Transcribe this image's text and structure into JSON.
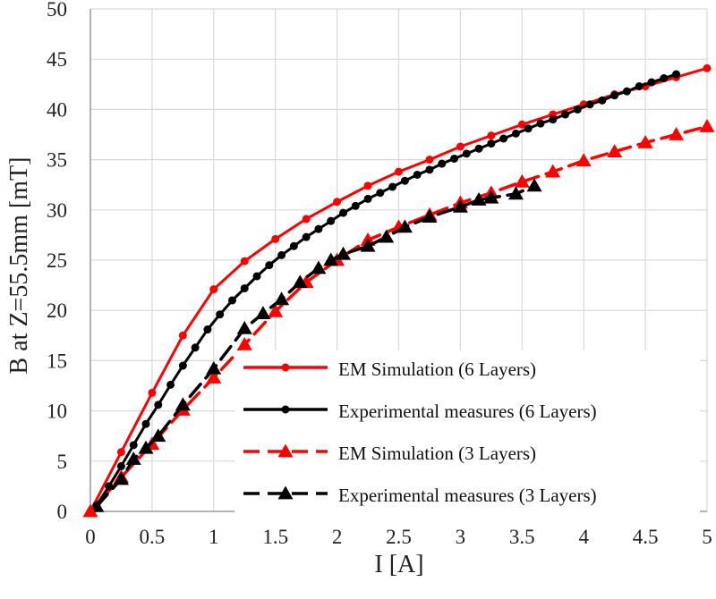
{
  "chart_data": {
    "type": "line",
    "title": "",
    "xlabel": "I [A]",
    "ylabel": "B at Z=55.5mm [mT]",
    "xlim": [
      0,
      5
    ],
    "ylim": [
      0,
      50
    ],
    "xticks": [
      "0",
      "0.5",
      "1",
      "1.5",
      "2",
      "2.5",
      "3",
      "3.5",
      "4",
      "4.5",
      "5"
    ],
    "yticks": [
      "0",
      "5",
      "10",
      "15",
      "20",
      "25",
      "30",
      "35",
      "40",
      "45",
      "50"
    ],
    "grid": true,
    "legend": "bottom-right",
    "series": [
      {
        "name": "EM Simulation (6 Layers)",
        "color": "#ff0000",
        "line": "solid",
        "marker": "circle",
        "points": [
          [
            0,
            0
          ],
          [
            0.25,
            5.9
          ],
          [
            0.5,
            11.8
          ],
          [
            0.75,
            17.5
          ],
          [
            1,
            22.1
          ],
          [
            1.25,
            24.9
          ],
          [
            1.5,
            27.1
          ],
          [
            1.75,
            29.1
          ],
          [
            2,
            30.8
          ],
          [
            2.25,
            32.4
          ],
          [
            2.5,
            33.8
          ],
          [
            2.75,
            35
          ],
          [
            3,
            36.3
          ],
          [
            3.25,
            37.4
          ],
          [
            3.5,
            38.5
          ],
          [
            3.75,
            39.5
          ],
          [
            4,
            40.5
          ],
          [
            4.25,
            41.5
          ],
          [
            4.5,
            42.3
          ],
          [
            4.75,
            43.2
          ],
          [
            5,
            44.1
          ]
        ]
      },
      {
        "name": "Experimental measures (6 Layers)",
        "color": "#000000",
        "line": "solid",
        "marker": "circle",
        "points": [
          [
            0.05,
            0.6
          ],
          [
            0.15,
            2.5
          ],
          [
            0.25,
            4.5
          ],
          [
            0.35,
            6.6
          ],
          [
            0.45,
            8.7
          ],
          [
            0.55,
            10.6
          ],
          [
            0.65,
            12.6
          ],
          [
            0.75,
            14.5
          ],
          [
            0.85,
            16.3
          ],
          [
            0.95,
            18.1
          ],
          [
            1.05,
            19.6
          ],
          [
            1.15,
            21
          ],
          [
            1.25,
            22.2
          ],
          [
            1.35,
            23.4
          ],
          [
            1.45,
            24.5
          ],
          [
            1.55,
            25.5
          ],
          [
            1.65,
            26.4
          ],
          [
            1.75,
            27.3
          ],
          [
            1.85,
            28.1
          ],
          [
            1.95,
            28.9
          ],
          [
            2.05,
            29.7
          ],
          [
            2.15,
            30.4
          ],
          [
            2.25,
            31.1
          ],
          [
            2.35,
            31.7
          ],
          [
            2.45,
            32.3
          ],
          [
            2.55,
            32.9
          ],
          [
            2.65,
            33.5
          ],
          [
            2.75,
            34
          ],
          [
            2.85,
            34.6
          ],
          [
            2.95,
            35.1
          ],
          [
            3.05,
            35.6
          ],
          [
            3.15,
            36.1
          ],
          [
            3.25,
            36.6
          ],
          [
            3.35,
            37.1
          ],
          [
            3.45,
            37.6
          ],
          [
            3.55,
            38.1
          ],
          [
            3.65,
            38.6
          ],
          [
            3.75,
            39
          ],
          [
            3.85,
            39.5
          ],
          [
            3.95,
            40
          ],
          [
            4.05,
            40.5
          ],
          [
            4.15,
            40.9
          ],
          [
            4.25,
            41.4
          ],
          [
            4.35,
            41.8
          ],
          [
            4.45,
            42.3
          ],
          [
            4.55,
            42.7
          ],
          [
            4.65,
            43.1
          ],
          [
            4.75,
            43.5
          ]
        ]
      },
      {
        "name": "EM Simulation (3 Layers)",
        "color": "#ff0000",
        "line": "dashed",
        "marker": "triangle",
        "points": [
          [
            0,
            0
          ],
          [
            0.25,
            3.4
          ],
          [
            0.5,
            6.7
          ],
          [
            0.75,
            10.1
          ],
          [
            1,
            13.3
          ],
          [
            1.25,
            16.6
          ],
          [
            1.5,
            19.9
          ],
          [
            1.75,
            22.8
          ],
          [
            2,
            25
          ],
          [
            2.25,
            27
          ],
          [
            2.5,
            28.3
          ],
          [
            2.75,
            29.5
          ],
          [
            3,
            30.7
          ],
          [
            3.25,
            31.7
          ],
          [
            3.5,
            32.8
          ],
          [
            3.75,
            33.8
          ],
          [
            4,
            34.9
          ],
          [
            4.25,
            35.8
          ],
          [
            4.5,
            36.7
          ],
          [
            4.75,
            37.5
          ],
          [
            5,
            38.3
          ]
        ]
      },
      {
        "name": "Experimental measures (3 Layers)",
        "color": "#000000",
        "line": "dashed",
        "marker": "triangle",
        "points": [
          [
            0.05,
            0.5
          ],
          [
            0.25,
            3.2
          ],
          [
            0.35,
            5.2
          ],
          [
            0.45,
            6.3
          ],
          [
            0.55,
            7.5
          ],
          [
            0.75,
            10.6
          ],
          [
            1,
            14.2
          ],
          [
            1.25,
            18.2
          ],
          [
            1.4,
            19.7
          ],
          [
            1.55,
            21.1
          ],
          [
            1.7,
            22.8
          ],
          [
            1.85,
            24.2
          ],
          [
            1.95,
            25
          ],
          [
            2.05,
            25.6
          ],
          [
            2.25,
            26.4
          ],
          [
            2.4,
            27.3
          ],
          [
            2.55,
            28.3
          ],
          [
            2.75,
            29.3
          ],
          [
            3,
            30.3
          ],
          [
            3.15,
            31
          ],
          [
            3.25,
            31.2
          ],
          [
            3.45,
            31.6
          ],
          [
            3.6,
            32.4
          ]
        ]
      }
    ]
  }
}
